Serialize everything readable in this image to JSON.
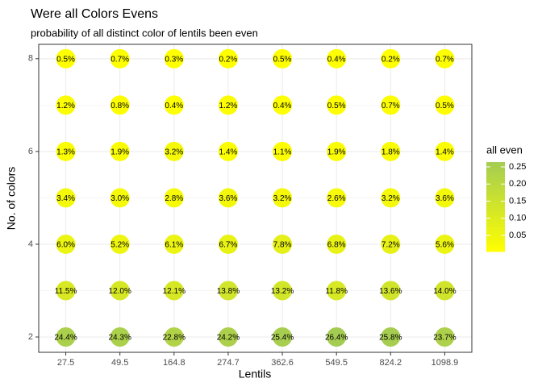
{
  "chart_data": {
    "type": "scatter",
    "title": "Were all Colors Evens",
    "subtitle": "probability of all distinct color of lentils been even",
    "x_label": "Lentils",
    "y_label": "No. of colors",
    "x": [
      "27.5",
      "49.5",
      "164.8",
      "274.7",
      "362.6",
      "549.5",
      "824.2",
      "1098.9"
    ],
    "y": [
      2,
      3,
      4,
      5,
      6,
      7,
      8
    ],
    "values": [
      [
        0.244,
        0.243,
        0.228,
        0.242,
        0.254,
        0.264,
        0.258,
        0.237
      ],
      [
        0.115,
        0.12,
        0.121,
        0.138,
        0.132,
        0.118,
        0.136,
        0.14
      ],
      [
        0.06,
        0.052,
        0.061,
        0.067,
        0.078,
        0.068,
        0.072,
        0.056
      ],
      [
        0.034,
        0.03,
        0.028,
        0.036,
        0.032,
        0.026,
        0.032,
        0.036
      ],
      [
        0.013,
        0.019,
        0.032,
        0.014,
        0.011,
        0.019,
        0.018,
        0.014
      ],
      [
        0.012,
        0.008,
        0.004,
        0.012,
        0.004,
        0.005,
        0.007,
        0.005
      ],
      [
        0.005,
        0.007,
        0.003,
        0.002,
        0.005,
        0.004,
        0.002,
        0.007
      ]
    ],
    "value_labels": [
      [
        "24.4%",
        "24.3%",
        "22.8%",
        "24.2%",
        "25.4%",
        "26.4%",
        "25.8%",
        "23.7%"
      ],
      [
        "11.5%",
        "12.0%",
        "12.1%",
        "13.8%",
        "13.2%",
        "11.8%",
        "13.6%",
        "14.0%"
      ],
      [
        "6.0%",
        "5.2%",
        "6.1%",
        "6.7%",
        "7.8%",
        "6.8%",
        "7.2%",
        "5.6%"
      ],
      [
        "3.4%",
        "3.0%",
        "2.8%",
        "3.6%",
        "3.2%",
        "2.6%",
        "3.2%",
        "3.6%"
      ],
      [
        "1.3%",
        "1.9%",
        "3.2%",
        "1.4%",
        "1.1%",
        "1.9%",
        "1.8%",
        "1.4%"
      ],
      [
        "1.2%",
        "0.8%",
        "0.4%",
        "1.2%",
        "0.4%",
        "0.5%",
        "0.7%",
        "0.5%"
      ],
      [
        "0.5%",
        "0.7%",
        "0.3%",
        "0.2%",
        "0.5%",
        "0.4%",
        "0.2%",
        "0.7%"
      ]
    ],
    "ylim": [
      1.67,
      8.31
    ],
    "yticks": [
      2,
      4,
      6,
      8
    ],
    "grid": true,
    "color_title": "all even",
    "colors": [
      "#ffff00",
      "#a4cc52"
    ],
    "colorlim": [
      0.002,
      0.264
    ],
    "colorticks": [
      0.05,
      {
        "value": 0.1,
        "label": "0.10"
      },
      0.15,
      {
        "value": 0.2,
        "label": "0.20"
      },
      0.25
    ]
  }
}
